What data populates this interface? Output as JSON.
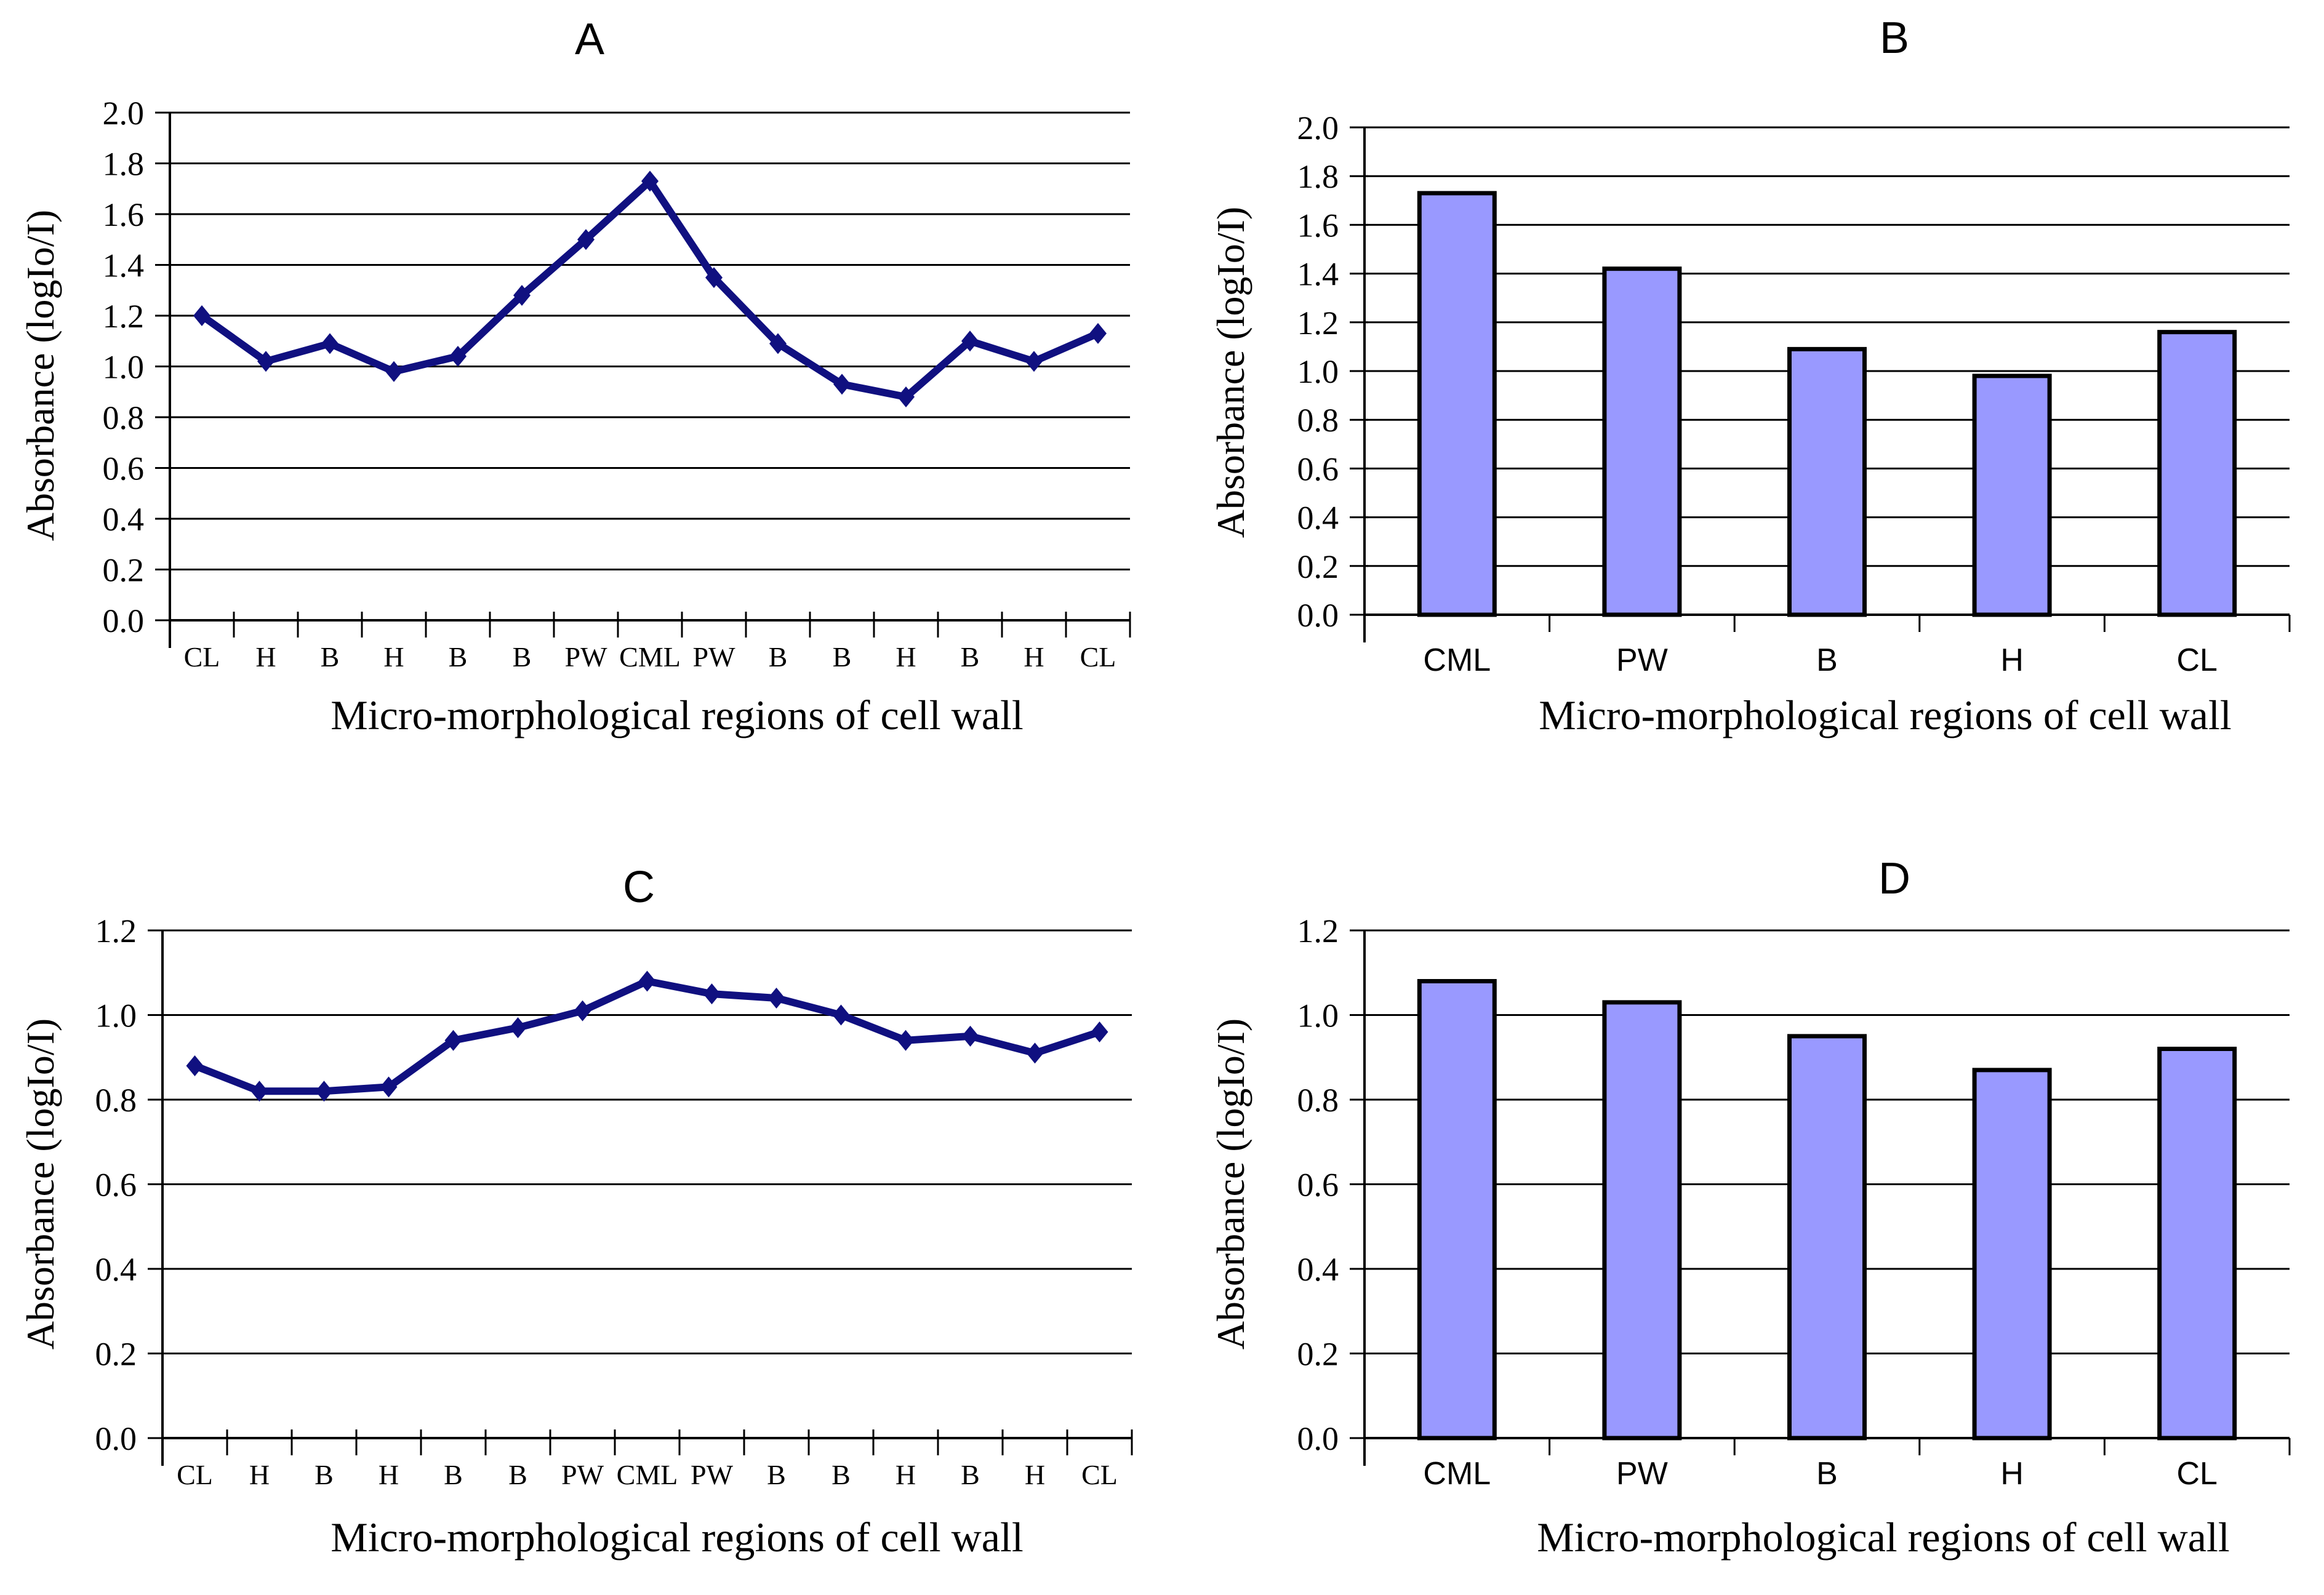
{
  "colors": {
    "line": "#101080",
    "bar_fill": "#9999ff",
    "bar_stroke": "#000000",
    "grid": "#000000",
    "text": "#000000"
  },
  "chart_data": [
    {
      "id": "A",
      "type": "line",
      "title": "A",
      "ylabel": "Absorbance (logIo/I)",
      "xlabel": "Micro-morphological regions of cell wall",
      "categories": [
        "CL",
        "H",
        "B",
        "H",
        "B",
        "B",
        "PW",
        "CML",
        "PW",
        "B",
        "B",
        "H",
        "B",
        "H",
        "CL"
      ],
      "values": [
        1.2,
        1.02,
        1.09,
        0.98,
        1.04,
        1.28,
        1.5,
        1.73,
        1.35,
        1.09,
        0.93,
        0.88,
        1.1,
        1.02,
        1.13
      ],
      "ylim": [
        0,
        2.0
      ],
      "ytick_step": 0.2,
      "grid": true,
      "legend": "none"
    },
    {
      "id": "B",
      "type": "bar",
      "title": "B",
      "ylabel": "Absorbance (logIo/I)",
      "xlabel": "Micro-morphological regions of cell wall",
      "categories": [
        "CML",
        "PW",
        "B",
        "H",
        "CL"
      ],
      "values": [
        1.73,
        1.42,
        1.09,
        0.98,
        1.16
      ],
      "ylim": [
        0,
        2.0
      ],
      "ytick_step": 0.2,
      "grid": true,
      "legend": "none"
    },
    {
      "id": "C",
      "type": "line",
      "title": "C",
      "ylabel": "Absorbance (logIo/I)",
      "xlabel": "Micro-morphological regions of cell wall",
      "categories": [
        "CL",
        "H",
        "B",
        "H",
        "B",
        "B",
        "PW",
        "CML",
        "PW",
        "B",
        "B",
        "H",
        "B",
        "H",
        "CL"
      ],
      "values": [
        0.88,
        0.82,
        0.82,
        0.83,
        0.94,
        0.97,
        1.01,
        1.08,
        1.05,
        1.04,
        1.0,
        0.94,
        0.95,
        0.91,
        0.96
      ],
      "ylim": [
        0,
        1.2
      ],
      "ytick_step": 0.2,
      "grid": true,
      "legend": "none"
    },
    {
      "id": "D",
      "type": "bar",
      "title": "D",
      "ylabel": "Absorbance (logIo/I)",
      "xlabel": "Micro-morphological regions of cell wall",
      "categories": [
        "CML",
        "PW",
        "B",
        "H",
        "CL"
      ],
      "values": [
        1.08,
        1.03,
        0.95,
        0.87,
        0.92
      ],
      "ylim": [
        0,
        1.2
      ],
      "ytick_step": 0.2,
      "grid": true,
      "legend": "none"
    }
  ]
}
